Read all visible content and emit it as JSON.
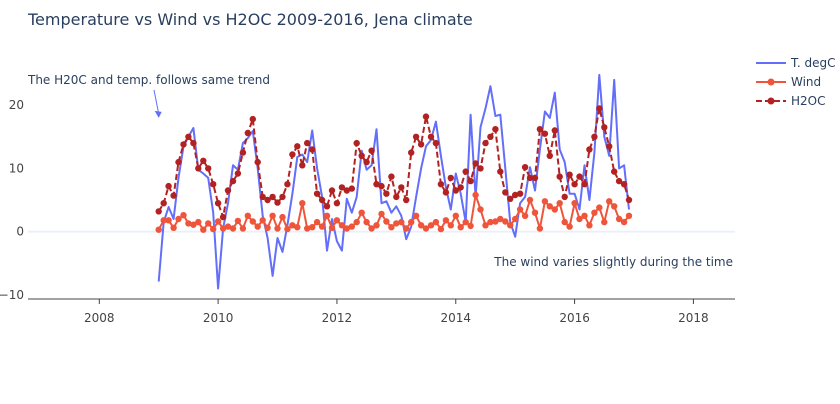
{
  "chart_data": {
    "type": "line",
    "title": "Temperature vs Wind vs H2OC 2009-2016, Jena climate",
    "xlabel": "",
    "ylabel": "",
    "xlim": [
      2006.8,
      2018.7
    ],
    "ylim": [
      -10.5,
      30
    ],
    "x_ticks": [
      2008,
      2010,
      2012,
      2014,
      2016,
      2018
    ],
    "y_ticks": [
      -10,
      0,
      10,
      20
    ],
    "grid": false,
    "legend_position": "top-right",
    "annotations": [
      {
        "text": "The H20C and temp. follows same trend",
        "x": 2009.0,
        "y": 18.0,
        "arrow": true
      },
      {
        "text": "The wind varies slightly during the time",
        "x": 2018.7,
        "y": -5.0,
        "arrow": false
      }
    ],
    "x_start": 2009.0,
    "x_step": 0.08333,
    "series": [
      {
        "name": "T. degC",
        "color": "#636efa",
        "mode": "lines",
        "values": [
          -7.9,
          1.5,
          3.9,
          2.0,
          8.5,
          13.5,
          15.0,
          16.4,
          9.8,
          9.2,
          8.5,
          3.0,
          -9.0,
          0.5,
          4.5,
          10.5,
          9.8,
          14.0,
          14.8,
          15.9,
          10.0,
          2.5,
          -1.0,
          -7.0,
          -1.0,
          -3.2,
          1.0,
          6.0,
          11.8,
          12.2,
          11.0,
          16.0,
          10.0,
          5.5,
          -3.0,
          2.0,
          -1.5,
          -3.0,
          5.2,
          3.0,
          5.5,
          12.8,
          9.8,
          10.5,
          16.2,
          4.5,
          4.8,
          3.0,
          4.0,
          2.5,
          -1.2,
          0.8,
          5.5,
          10.0,
          13.5,
          14.5,
          17.4,
          12.0,
          7.0,
          3.5,
          9.2,
          6.0,
          1.5,
          18.5,
          5.5,
          16.5,
          19.5,
          23.0,
          18.3,
          18.5,
          10.0,
          1.5,
          -0.8,
          4.5,
          5.5,
          10.2,
          6.5,
          13.0,
          19.0,
          18.0,
          22.0,
          13.0,
          11.0,
          6.0,
          6.0,
          3.5,
          10.5,
          5.0,
          12.5,
          24.8,
          15.0,
          12.0,
          24.0,
          10.0,
          10.5,
          3.5
        ]
      },
      {
        "name": "Wind",
        "color": "#ef553b",
        "mode": "lines+markers",
        "values": [
          0.3,
          1.8,
          1.8,
          0.6,
          2.0,
          2.6,
          1.3,
          1.1,
          1.5,
          0.3,
          1.3,
          0.4,
          1.6,
          0.5,
          0.8,
          0.5,
          1.7,
          0.5,
          2.5,
          1.6,
          0.8,
          1.8,
          0.6,
          2.5,
          0.5,
          2.3,
          0.4,
          1.0,
          0.7,
          4.5,
          0.5,
          0.7,
          1.5,
          0.8,
          2.5,
          0.6,
          1.8,
          1.0,
          0.5,
          0.8,
          1.5,
          3.0,
          1.5,
          0.5,
          1.0,
          2.8,
          1.6,
          0.7,
          1.3,
          1.5,
          0.5,
          1.5,
          2.5,
          1.0,
          0.5,
          1.0,
          1.5,
          0.4,
          1.8,
          1.0,
          2.5,
          0.7,
          1.5,
          0.9,
          5.8,
          3.5,
          1.0,
          1.5,
          1.6,
          2.0,
          1.6,
          1.0,
          2.0,
          3.5,
          2.5,
          5.0,
          3.0,
          0.5,
          4.8,
          4.0,
          3.5,
          4.5,
          1.5,
          0.8,
          4.5,
          2.0,
          2.5,
          1.0,
          3.0,
          3.8,
          1.5,
          4.8,
          4.0,
          2.0,
          1.5,
          2.5
        ]
      },
      {
        "name": "H2OC",
        "color": "#b22222",
        "mode": "lines+markers",
        "dash": "dash",
        "values": [
          3.2,
          4.5,
          7.2,
          5.7,
          11.0,
          13.8,
          15.0,
          14.0,
          10.0,
          11.2,
          10.0,
          7.5,
          4.5,
          2.3,
          6.5,
          8.0,
          9.2,
          12.5,
          15.6,
          17.8,
          11.0,
          5.5,
          5.0,
          5.5,
          4.6,
          5.5,
          7.5,
          12.2,
          13.5,
          10.5,
          14.0,
          13.0,
          6.0,
          5.0,
          4.0,
          6.5,
          4.5,
          7.0,
          6.5,
          6.8,
          14.0,
          12.0,
          11.0,
          12.8,
          7.5,
          7.2,
          6.0,
          8.7,
          5.5,
          7.0,
          5.0,
          12.5,
          15.0,
          13.8,
          18.2,
          15.0,
          14.0,
          7.5,
          6.2,
          8.5,
          6.5,
          7.0,
          9.5,
          8.0,
          10.8,
          10.0,
          14.0,
          15.0,
          16.2,
          9.5,
          6.2,
          5.2,
          5.8,
          6.0,
          10.2,
          8.5,
          8.5,
          16.2,
          15.5,
          12.0,
          16.0,
          8.7,
          5.5,
          9.0,
          7.5,
          8.7,
          7.5,
          13.0,
          15.0,
          19.5,
          16.5,
          13.5,
          9.5,
          8.0,
          7.5,
          5.0
        ]
      }
    ]
  }
}
